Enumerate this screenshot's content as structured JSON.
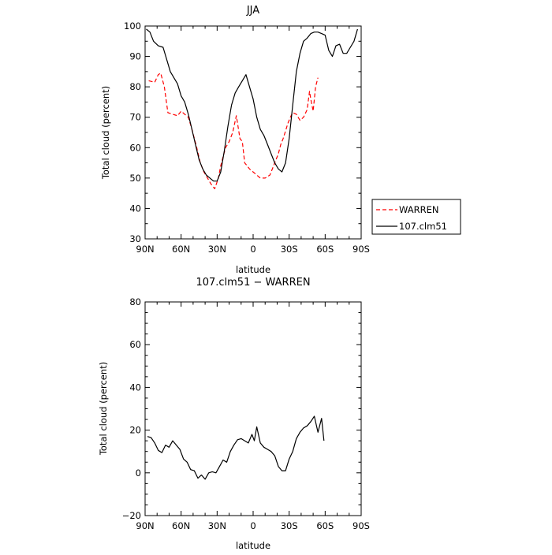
{
  "chart_data": [
    {
      "type": "line",
      "title": "JJA",
      "xlabel": "latitude",
      "ylabel": "Total cloud (percent)",
      "xlim": [
        90,
        -90
      ],
      "ylim": [
        30,
        100
      ],
      "xticks": [
        90,
        60,
        30,
        0,
        -30,
        -60,
        -90
      ],
      "xtick_labels": [
        "90N",
        "60N",
        "30N",
        "0",
        "30S",
        "60S",
        "90S"
      ],
      "yticks": [
        30,
        40,
        50,
        60,
        70,
        80,
        90,
        100
      ],
      "ytick_labels": [
        "30",
        "40",
        "50",
        "60",
        "70",
        "80",
        "90",
        "100"
      ],
      "grid": false,
      "legend_position": "right",
      "series": [
        {
          "name": "WARREN",
          "color": "#ff0000",
          "style": "dashed",
          "x": [
            87,
            82,
            79,
            77,
            74,
            71,
            67,
            63,
            60,
            57,
            54,
            51,
            47,
            44,
            41,
            38,
            35,
            32,
            29,
            27,
            25,
            23,
            20,
            17,
            14,
            11,
            9,
            7,
            5,
            3,
            0,
            -3,
            -6,
            -10,
            -14,
            -18,
            -21,
            -23,
            -25,
            -27,
            -29,
            -31,
            -33,
            -36,
            -39,
            -42,
            -45,
            -47,
            -48,
            -50,
            -52,
            -54
          ],
          "y": [
            82,
            81.5,
            84,
            84.5,
            80,
            71.5,
            71,
            70.5,
            72,
            71,
            70,
            66,
            60,
            55,
            52,
            50,
            48,
            46.5,
            50,
            54,
            57,
            60,
            62,
            65,
            70.5,
            63,
            62,
            55,
            54,
            53,
            52,
            51,
            50,
            50,
            51,
            55,
            58,
            61,
            63,
            65.5,
            68,
            70,
            71.5,
            71,
            69,
            70,
            72.5,
            78.5,
            76,
            72,
            80,
            83
          ]
        },
        {
          "name": "107.clm51",
          "color": "#000000",
          "style": "solid",
          "x": [
            89,
            86,
            83,
            79,
            75,
            72,
            69,
            66,
            63,
            60,
            57,
            54,
            51,
            48,
            45,
            42,
            39,
            36,
            33,
            30,
            27,
            24,
            21,
            18,
            15,
            12,
            9,
            6,
            3,
            0,
            -3,
            -6,
            -9,
            -12,
            -15,
            -18,
            -21,
            -24,
            -27,
            -30,
            -33,
            -36,
            -39,
            -42,
            -45,
            -48,
            -51,
            -54,
            -57,
            -60,
            -63,
            -66,
            -69,
            -72,
            -75,
            -78,
            -81,
            -84,
            -87
          ],
          "y": [
            99,
            98,
            95,
            93.5,
            93,
            89,
            85,
            83,
            81,
            77,
            75,
            71,
            66,
            61,
            56,
            53,
            51,
            50,
            49,
            49,
            52,
            59,
            67,
            74,
            78,
            80,
            82,
            84,
            80,
            76,
            70,
            66,
            64,
            61,
            58,
            55,
            53,
            52,
            55,
            63,
            74,
            85,
            91,
            95,
            96,
            97.5,
            98,
            98,
            97.5,
            97,
            92,
            90,
            93.5,
            94,
            91,
            91,
            93,
            95,
            99
          ]
        }
      ]
    },
    {
      "type": "line",
      "title": "107.clm51 − WARREN",
      "xlabel": "latitude",
      "ylabel": "Total cloud (percent)",
      "xlim": [
        90,
        -90
      ],
      "ylim": [
        -20,
        80
      ],
      "xticks": [
        90,
        60,
        30,
        0,
        -30,
        -60,
        -90
      ],
      "xtick_labels": [
        "90N",
        "60N",
        "30N",
        "0",
        "30S",
        "60S",
        "90S"
      ],
      "yticks": [
        -20,
        0,
        20,
        40,
        60,
        80
      ],
      "ytick_labels": [
        "−20",
        "0",
        "20",
        "40",
        "60",
        "80"
      ],
      "grid": false,
      "series": [
        {
          "color": "#000000",
          "style": "solid",
          "x": [
            88,
            85,
            82,
            79,
            76,
            73,
            70,
            67,
            64,
            61,
            58,
            55,
            52,
            49,
            46,
            43,
            40,
            37,
            34,
            31,
            28,
            25,
            22,
            19,
            16,
            13,
            10,
            7,
            4,
            1,
            -1,
            -3,
            -6,
            -9,
            -12,
            -15,
            -18,
            -21,
            -24,
            -27,
            -30,
            -33,
            -36,
            -39,
            -42,
            -45,
            -48,
            -51,
            -54,
            -57,
            -59
          ],
          "y": [
            17,
            16.5,
            14,
            10.5,
            9.5,
            13,
            12,
            15,
            13,
            11,
            6.5,
            5,
            1.5,
            1,
            -2.5,
            -1,
            -3,
            0,
            0.5,
            0,
            3,
            6,
            5,
            10,
            13,
            15.5,
            16,
            15,
            14,
            18,
            15,
            21.5,
            14,
            12,
            11,
            10,
            8,
            3,
            1,
            1,
            6.5,
            10,
            16,
            19,
            21,
            22,
            24,
            26.5,
            19,
            25.5,
            15
          ]
        }
      ]
    }
  ],
  "legend": {
    "items": [
      {
        "label": "WARREN",
        "color": "#ff0000",
        "style": "dashed"
      },
      {
        "label": "107.clm51",
        "color": "#000000",
        "style": "solid"
      }
    ]
  }
}
